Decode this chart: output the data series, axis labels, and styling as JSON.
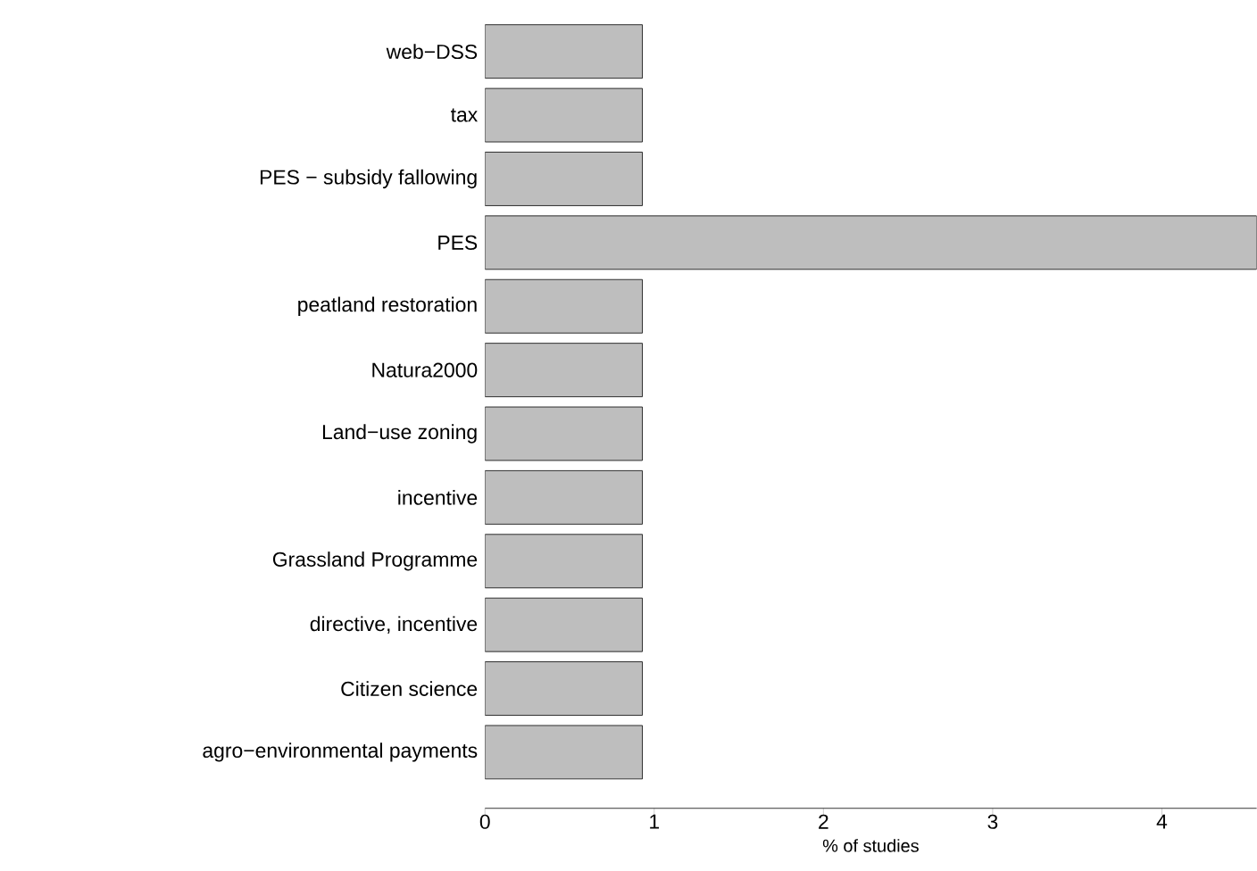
{
  "chart_data": {
    "type": "bar",
    "orientation": "horizontal",
    "xlabel": "% of studies",
    "categories": [
      "web−DSS",
      "tax",
      "PES − subsidy fallowing",
      "PES",
      "peatland restoration",
      "Natura2000",
      "Land−use zoning",
      "incentive",
      "Grassland Programme",
      "directive, incentive",
      "Citizen science",
      "agro−environmental payments"
    ],
    "values": [
      0.93,
      0.93,
      0.93,
      4.56,
      0.93,
      0.93,
      0.93,
      0.93,
      0.93,
      0.93,
      0.93,
      0.93
    ],
    "color": "#bebebe",
    "xlim": [
      0,
      4.56
    ],
    "xticks": [
      0,
      1,
      2,
      3,
      4
    ]
  }
}
